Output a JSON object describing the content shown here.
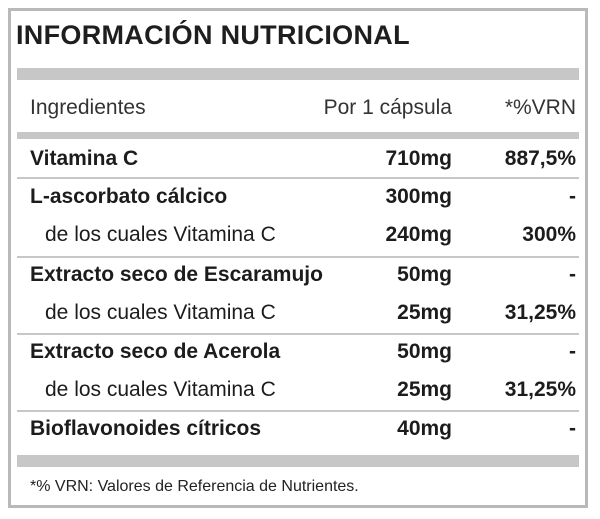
{
  "title": "INFORMACIÓN NUTRICIONAL",
  "header": {
    "ingredients": "Ingredientes",
    "per_capsule": "Por 1 cápsula",
    "vrn": "*%VRN"
  },
  "rows": [
    {
      "name": "Vitamina C",
      "amount": "710mg",
      "vrn": "887,5%"
    },
    {
      "name": "L-ascorbato cálcico",
      "amount": "300mg",
      "vrn": "-"
    },
    {
      "name": "de los cuales Vitamina C",
      "amount": "240mg",
      "vrn": "300%"
    },
    {
      "name": "Extracto seco de Escaramujo",
      "amount": "50mg",
      "vrn": "-"
    },
    {
      "name": "de los cuales Vitamina C",
      "amount": "25mg",
      "vrn": "31,25%"
    },
    {
      "name": "Extracto seco de Acerola",
      "amount": "50mg",
      "vrn": "-"
    },
    {
      "name": "de los cuales Vitamina C",
      "amount": "25mg",
      "vrn": "31,25%"
    },
    {
      "name": "Bioflavonoides cítricos",
      "amount": "40mg",
      "vrn": "-"
    }
  ],
  "footnote": "*% VRN: Valores de Referencia de Nutrientes.",
  "colors": {
    "border": "#b9b9b9",
    "divider": "#c7c7c7",
    "text": "#1c1c1c"
  }
}
